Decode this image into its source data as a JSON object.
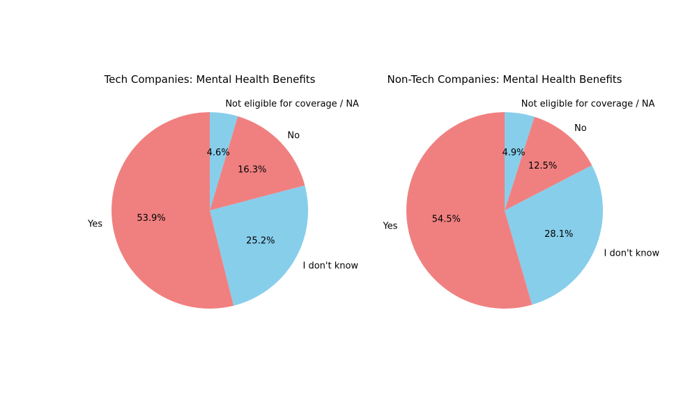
{
  "chart_data": [
    {
      "type": "pie",
      "title": "Tech Companies: Mental Health Benefits",
      "categories": [
        "Yes",
        "I don't know",
        "No",
        "Not eligible for coverage / NA"
      ],
      "values": [
        53.9,
        25.2,
        16.3,
        4.6
      ],
      "percent_labels": [
        "53.9%",
        "25.2%",
        "16.3%",
        "4.6%"
      ],
      "colors": [
        "#f08080",
        "#87ceeb",
        "#f08080",
        "#87ceeb"
      ],
      "start_angle_deg": 90,
      "direction": "counterclockwise",
      "legend": "none"
    },
    {
      "type": "pie",
      "title": "Non-Tech Companies: Mental Health Benefits",
      "categories": [
        "Yes",
        "I don't know",
        "No",
        "Not eligible for coverage / NA"
      ],
      "values": [
        54.5,
        28.1,
        12.5,
        4.9
      ],
      "percent_labels": [
        "54.5%",
        "28.1%",
        "12.5%",
        "4.9%"
      ],
      "colors": [
        "#f08080",
        "#87ceeb",
        "#f08080",
        "#87ceeb"
      ],
      "start_angle_deg": 90,
      "direction": "counterclockwise",
      "legend": "none"
    }
  ]
}
